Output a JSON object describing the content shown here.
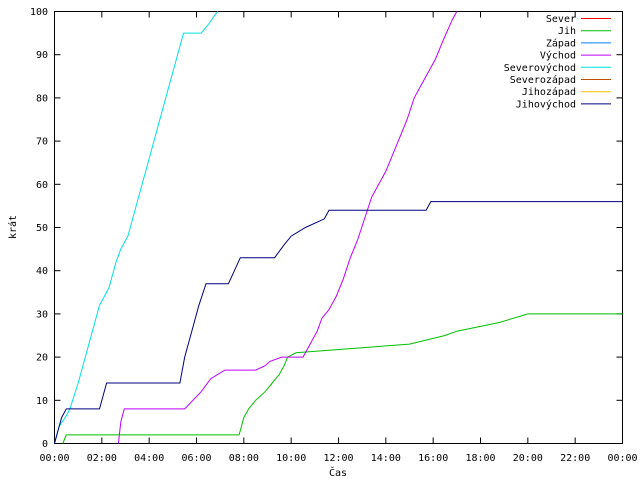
{
  "chart_data": {
    "type": "line",
    "xlabel": "Čas",
    "ylabel": "krát",
    "xlim": [
      0,
      24
    ],
    "ylim": [
      0,
      100
    ],
    "x_ticks": [
      0,
      2,
      4,
      6,
      8,
      10,
      12,
      14,
      16,
      18,
      20,
      22,
      24
    ],
    "x_tick_labels": [
      "00:00",
      "02:00",
      "04:00",
      "06:00",
      "08:00",
      "10:00",
      "12:00",
      "14:00",
      "16:00",
      "18:00",
      "20:00",
      "22:00",
      "00:00"
    ],
    "y_ticks": [
      0,
      10,
      20,
      30,
      40,
      50,
      60,
      70,
      80,
      90,
      100
    ],
    "y_tick_labels": [
      "0",
      "10",
      "20",
      "30",
      "40",
      "50",
      "60",
      "70",
      "80",
      "90",
      "100"
    ],
    "grid": false,
    "legend_position": "top-right",
    "series": [
      {
        "name": "Sever",
        "color": "#ff0000",
        "x": [],
        "y": []
      },
      {
        "name": "Jih",
        "color": "#00c000",
        "x": [
          0.35,
          0.5,
          7.8,
          7.9,
          8.0,
          8.2,
          8.5,
          8.9,
          9.2,
          9.5,
          9.7,
          9.85,
          10.2,
          15.0,
          16.5,
          17.0,
          18.8,
          20.0,
          24.0
        ],
        "y": [
          0,
          2,
          2,
          4,
          6,
          8,
          10,
          12,
          14,
          16,
          18,
          20,
          21,
          23,
          25,
          26,
          28,
          30,
          30
        ]
      },
      {
        "name": "Západ",
        "color": "#0080ff",
        "x": [],
        "y": []
      },
      {
        "name": "Východ",
        "color": "#c000ff",
        "x": [
          2.7,
          2.8,
          2.95,
          5.5,
          6.2,
          6.6,
          7.2,
          8.5,
          8.9,
          9.1,
          9.6,
          10.5,
          10.8,
          11.1,
          11.3,
          11.6,
          11.9,
          12.2,
          12.5,
          12.8,
          13.1,
          13.4,
          13.7,
          14.0,
          14.3,
          14.6,
          14.9,
          15.2,
          15.5,
          15.8,
          16.1,
          16.4,
          16.8,
          17.0
        ],
        "y": [
          0,
          5,
          8,
          8,
          12,
          15,
          17,
          17,
          18,
          19,
          20,
          20,
          23,
          26,
          29,
          31,
          34,
          38,
          43,
          47,
          52,
          57,
          60,
          63,
          67,
          71,
          75,
          80,
          83,
          86,
          89,
          93,
          98,
          100
        ]
      },
      {
        "name": "Severovýchod",
        "color": "#00e0e0",
        "x": [
          0.0,
          0.2,
          0.45,
          0.65,
          1.0,
          1.3,
          1.6,
          1.9,
          2.3,
          2.6,
          2.8,
          3.1,
          3.4,
          3.7,
          4.0,
          4.3,
          4.6,
          4.9,
          5.2,
          5.45,
          6.2,
          6.5,
          6.75,
          6.9
        ],
        "y": [
          0,
          4,
          6,
          8,
          14,
          20,
          26,
          32,
          36,
          42,
          45,
          48,
          54,
          60,
          66,
          72,
          78,
          84,
          90,
          95,
          95,
          97,
          99,
          100
        ]
      },
      {
        "name": "Severozápad",
        "color": "#c05000",
        "x": [],
        "y": []
      },
      {
        "name": "Jihozápad",
        "color": "#ffc000",
        "x": [],
        "y": []
      },
      {
        "name": "Jihovýchod",
        "color": "#000080",
        "x": [
          0.0,
          0.15,
          0.3,
          0.5,
          1.9,
          2.2,
          5.3,
          5.5,
          5.8,
          6.1,
          6.4,
          7.35,
          7.6,
          7.85,
          9.3,
          9.7,
          10.0,
          10.6,
          11.4,
          11.6,
          15.7,
          15.9,
          24.0
        ],
        "y": [
          0,
          3,
          6,
          8,
          8,
          14,
          14,
          20,
          26,
          32,
          37,
          37,
          40,
          43,
          43,
          46,
          48,
          50,
          52,
          54,
          54,
          56,
          56
        ]
      }
    ]
  }
}
